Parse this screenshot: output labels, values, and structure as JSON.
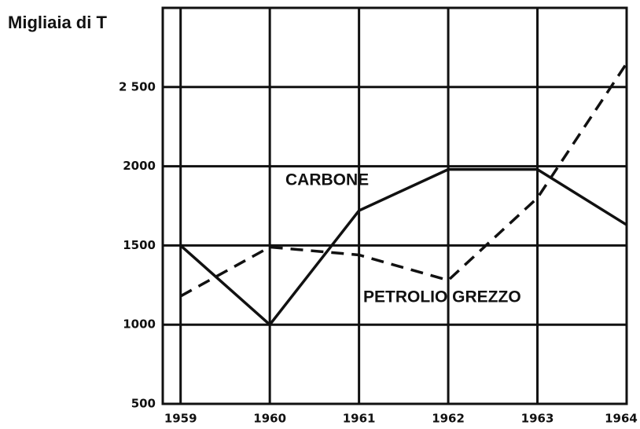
{
  "chart_data": {
    "type": "line",
    "y_label": "Migliaia di T",
    "x": [
      1959,
      1960,
      1961,
      1962,
      1963,
      1964
    ],
    "series": [
      {
        "name": "CARBONE",
        "color": "#111111",
        "dash": false,
        "values": [
          1500,
          1000,
          1720,
          1980,
          1980,
          1630
        ]
      },
      {
        "name": "PETROLIO GREZZO",
        "color": "#111111",
        "dash": true,
        "values": [
          1180,
          1490,
          1440,
          1280,
          1800,
          2650
        ]
      }
    ],
    "xlim": [
      1958.8,
      1964
    ],
    "xticks": [
      1959,
      1960,
      1961,
      1962,
      1963,
      1964
    ],
    "ylim": [
      500,
      3000
    ],
    "yticks": [
      500,
      1000,
      1500,
      {
        "value": 2000,
        "label": "2000"
      },
      {
        "value": 2500,
        "label": "2 500"
      }
    ],
    "grid": true
  }
}
